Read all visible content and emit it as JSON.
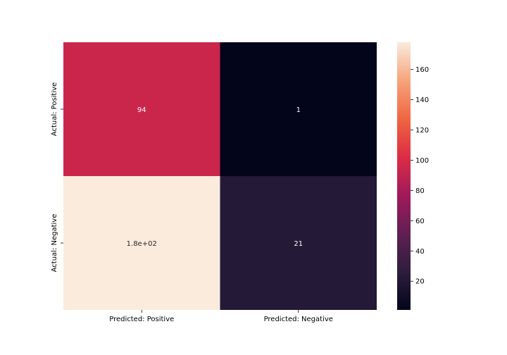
{
  "chart_data": {
    "type": "heatmap",
    "title": "",
    "xlabel": "",
    "ylabel": "",
    "x_categories": [
      "Predicted: Positive",
      "Predicted: Negative"
    ],
    "y_categories": [
      "Actual: Positive",
      "Actual: Negative"
    ],
    "values": [
      [
        94,
        1
      ],
      [
        178,
        21
      ]
    ],
    "annotations": [
      [
        "94",
        "1"
      ],
      [
        "1.8e+02",
        "21"
      ]
    ],
    "colorbar": {
      "min": 1,
      "max": 178,
      "ticks": [
        20,
        40,
        60,
        80,
        100,
        120,
        140,
        160
      ],
      "tick_labels": [
        "20",
        "40",
        "60",
        "80",
        "100",
        "120",
        "140",
        "160"
      ],
      "colormap": "rocket",
      "colormap_stops": [
        "#03051a",
        "#2d1e3e",
        "#611f53",
        "#a11a5b",
        "#dd2c45",
        "#ef6642",
        "#f6a47c",
        "#faebdd"
      ]
    }
  }
}
